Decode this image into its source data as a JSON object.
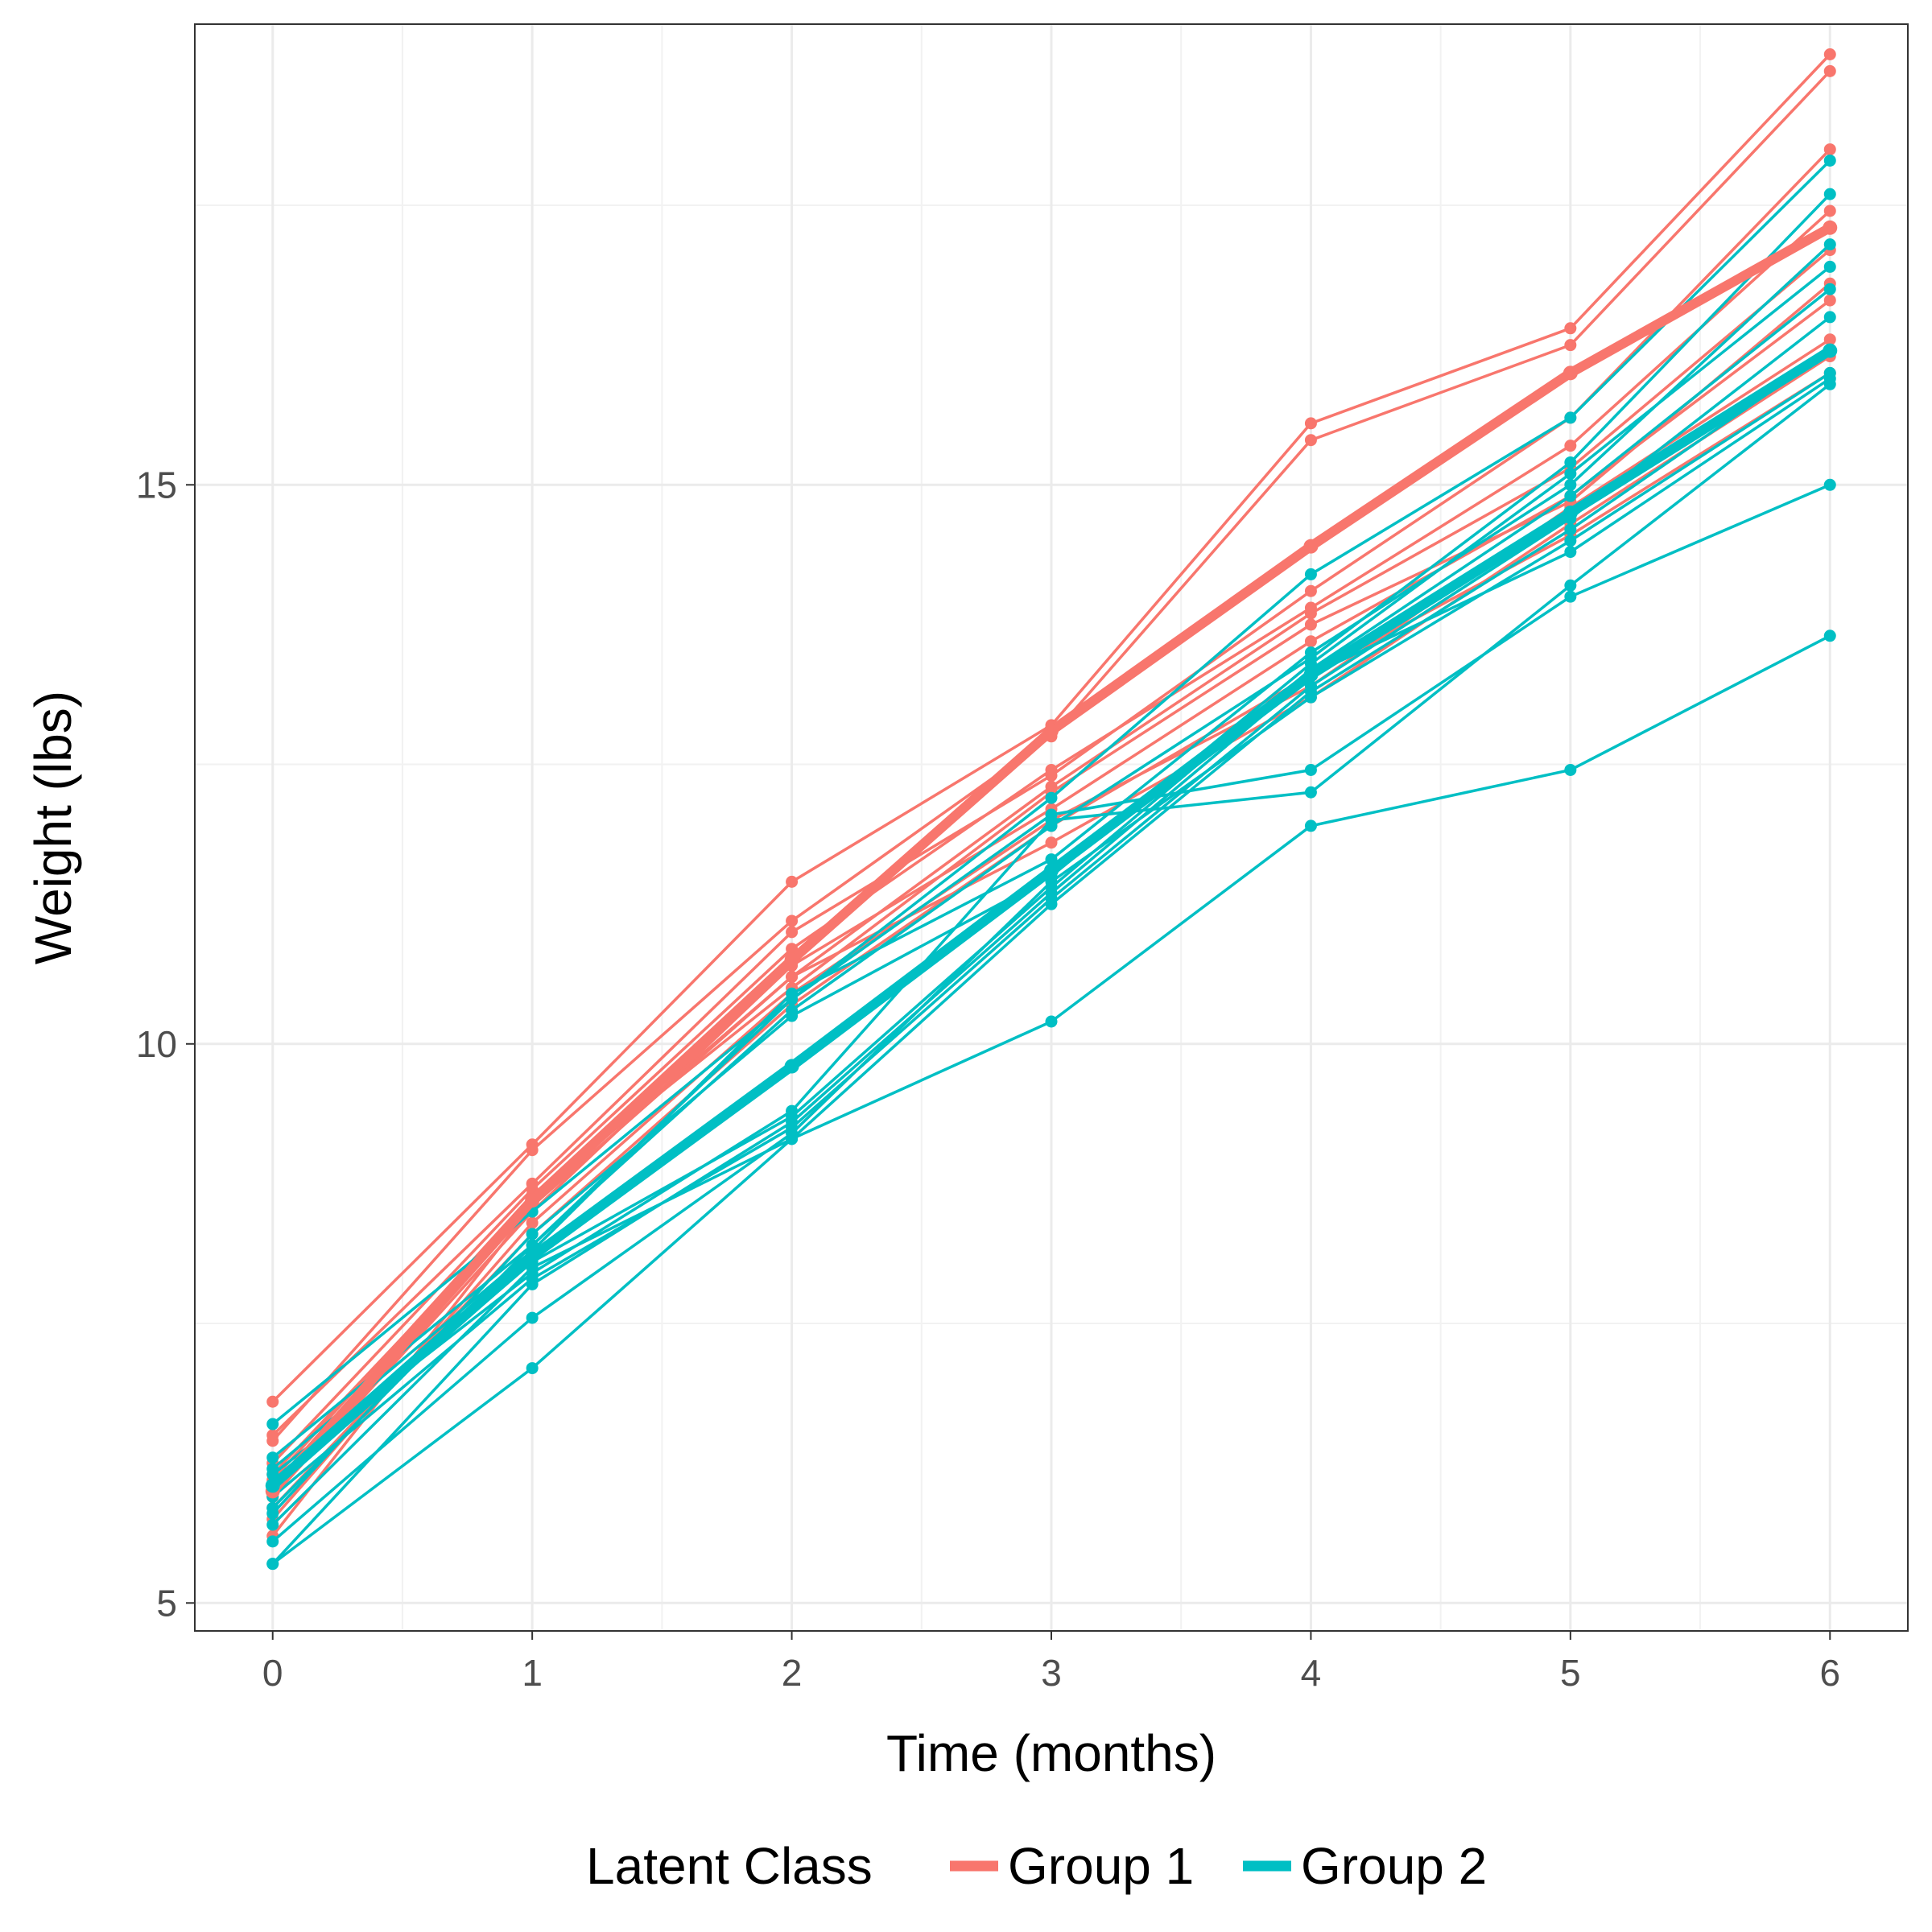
{
  "chart_data": {
    "type": "line",
    "title": "",
    "xlabel": "Time (months)",
    "ylabel": "Weight (lbs)",
    "xlim": [
      -0.3,
      6.3
    ],
    "ylim": [
      4.75,
      19.12
    ],
    "x_ticks": [
      0,
      1,
      2,
      3,
      4,
      5,
      6
    ],
    "x_tick_labels": [
      "0",
      "1",
      "2",
      "3",
      "4",
      "5",
      "6"
    ],
    "y_ticks": [
      5,
      10,
      15
    ],
    "y_tick_labels": [
      "5",
      "10",
      "15"
    ],
    "y_minor_gridlines": [
      7.5,
      12.5,
      17.5
    ],
    "x_minor_gridlines": [
      0.5,
      1.5,
      2.5,
      3.5,
      4.5,
      5.5
    ],
    "grid": true,
    "x": [
      0,
      1,
      2,
      3,
      4,
      5,
      6
    ],
    "legend": {
      "title": "Latent Class",
      "position": "bottom",
      "entries": [
        "Group 1",
        "Group 2"
      ]
    },
    "colors": {
      "Group 1": "#F8766D",
      "Group 2": "#00BFC4"
    },
    "mean_series": [
      {
        "name": "Group 1",
        "values": [
          6.0,
          8.6,
          10.75,
          12.8,
          14.45,
          16.0,
          17.3
        ]
      },
      {
        "name": "Group 2",
        "values": [
          6.05,
          8.1,
          9.8,
          11.55,
          13.3,
          14.75,
          16.2
        ]
      }
    ],
    "individual_series": [
      {
        "group": "Group 1",
        "values": [
          6.8,
          9.1,
          11.45,
          12.85,
          15.55,
          16.4,
          18.85
        ]
      },
      {
        "group": "Group 1",
        "values": [
          6.45,
          9.05,
          11.1,
          12.75,
          15.4,
          16.25,
          18.7
        ]
      },
      {
        "group": "Group 1",
        "values": [
          6.5,
          8.75,
          11.0,
          12.4,
          14.05,
          15.6,
          18.0
        ]
      },
      {
        "group": "Group 1",
        "values": [
          6.25,
          8.7,
          10.85,
          12.45,
          13.9,
          15.35,
          17.45
        ]
      },
      {
        "group": "Group 1",
        "values": [
          6.15,
          8.6,
          10.6,
          12.3,
          13.85,
          15.15,
          17.1
        ]
      },
      {
        "group": "Group 1",
        "values": [
          5.95,
          8.5,
          10.7,
          12.1,
          13.6,
          14.9,
          16.65
        ]
      },
      {
        "group": "Group 1",
        "values": [
          5.75,
          8.4,
          10.45,
          12.0,
          13.2,
          14.8,
          16.3
        ]
      },
      {
        "group": "Group 1",
        "values": [
          5.6,
          8.55,
          10.6,
          11.8,
          13.1,
          14.65,
          16.15
        ]
      },
      {
        "group": "Group 1",
        "values": [
          5.85,
          8.3,
          10.35,
          11.95,
          13.3,
          14.55,
          16.0
        ]
      },
      {
        "group": "Group 1",
        "values": [
          6.1,
          8.65,
          10.5,
          12.25,
          13.75,
          14.85,
          16.8
        ]
      },
      {
        "group": "Group 2",
        "values": [
          6.6,
          8.5,
          10.4,
          12.2,
          14.2,
          15.6,
          17.9
        ]
      },
      {
        "group": "Group 2",
        "values": [
          6.3,
          8.2,
          10.3,
          11.95,
          13.45,
          15.2,
          17.6
        ]
      },
      {
        "group": "Group 2",
        "values": [
          6.2,
          8.15,
          10.45,
          11.65,
          13.5,
          15.0,
          17.15
        ]
      },
      {
        "group": "Group 2",
        "values": [
          5.8,
          8.3,
          10.25,
          11.5,
          13.4,
          15.1,
          16.95
        ]
      },
      {
        "group": "Group 2",
        "values": [
          6.05,
          8.05,
          9.35,
          11.4,
          13.35,
          14.9,
          16.75
        ]
      },
      {
        "group": "Group 2",
        "values": [
          5.95,
          7.9,
          9.25,
          11.3,
          13.2,
          14.7,
          16.5
        ]
      },
      {
        "group": "Group 2",
        "values": [
          5.7,
          8.0,
          9.15,
          11.25,
          13.15,
          14.6,
          16.2
        ]
      },
      {
        "group": "Group 2",
        "values": [
          5.55,
          7.55,
          9.2,
          11.45,
          13.1,
          14.5,
          16.0
        ]
      },
      {
        "group": "Group 2",
        "values": [
          5.35,
          7.85,
          9.3,
          11.35,
          13.3,
          14.4,
          15.95
        ]
      },
      {
        "group": "Group 2",
        "values": [
          6.15,
          7.95,
          9.4,
          12.0,
          12.25,
          14.1,
          15.9
        ]
      },
      {
        "group": "Group 2",
        "values": [
          5.85,
          8.2,
          10.4,
          12.05,
          12.45,
          14.0,
          15.0
        ]
      },
      {
        "group": "Group 2",
        "values": [
          5.35,
          7.1,
          9.15,
          10.2,
          11.95,
          12.45,
          13.65
        ]
      }
    ]
  }
}
